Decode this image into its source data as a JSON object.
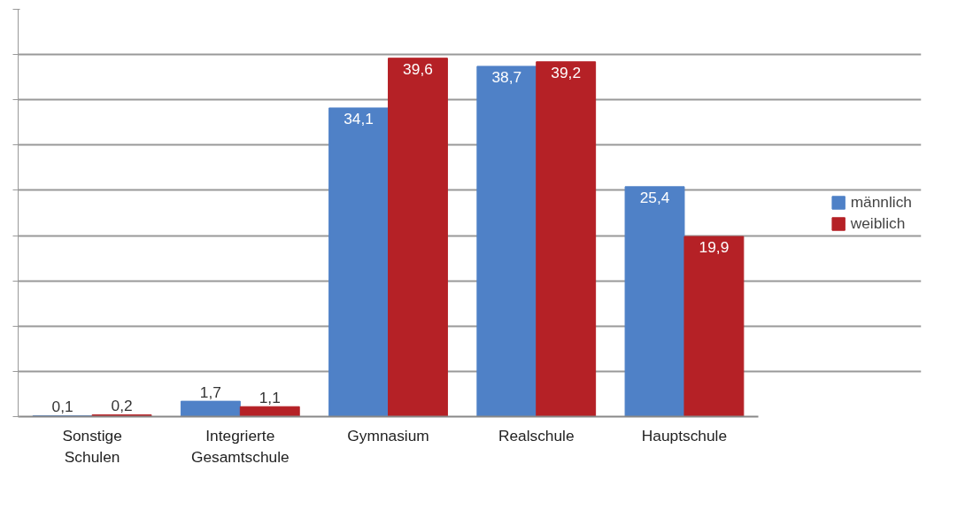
{
  "chart_data": {
    "type": "bar",
    "categories": [
      "Sonstige Schulen",
      "Integrierte Gesamtschule",
      "Gymnasium",
      "Realschule",
      "Hauptschule"
    ],
    "series": [
      {
        "name": "männlich",
        "color": "#4f81c7",
        "values": [
          0.1,
          1.7,
          34.1,
          38.7,
          25.4
        ],
        "value_labels": [
          "0,1",
          "1,7",
          "34,1",
          "38,7",
          "25,4"
        ]
      },
      {
        "name": "weiblich",
        "color": "#b52126",
        "values": [
          0.2,
          1.1,
          39.6,
          39.2,
          19.9
        ],
        "value_labels": [
          "0,2",
          "1,1",
          "39,6",
          "39,2",
          "19,9"
        ]
      }
    ],
    "ylim": [
      0,
      45
    ],
    "yticks": [
      {
        "value": 0,
        "label": null
      },
      {
        "value": 5,
        "label": null
      },
      {
        "value": 10,
        "label": null
      },
      {
        "value": 15,
        "label": null
      },
      {
        "value": 20,
        "label": null
      },
      {
        "value": 25,
        "label": null
      },
      {
        "value": 30,
        "label": null
      },
      {
        "value": 35,
        "label": null
      },
      {
        "value": 40,
        "label": null
      },
      {
        "value": 45,
        "label": null
      }
    ],
    "tick_labels": "x",
    "grid": "y",
    "legend": "right"
  }
}
